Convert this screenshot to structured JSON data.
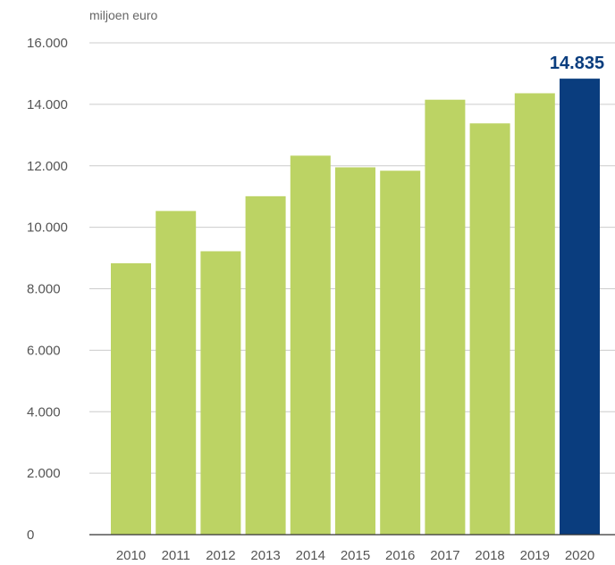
{
  "chart_data": {
    "type": "bar",
    "ylabel": "miljoen euro",
    "categories": [
      "2010",
      "2011",
      "2012",
      "2013",
      "2014",
      "2015",
      "2016",
      "2017",
      "2018",
      "2019",
      "2020"
    ],
    "values": [
      8830,
      10530,
      9220,
      11010,
      12330,
      11950,
      11840,
      14150,
      13380,
      14360,
      14835
    ],
    "ylim": [
      0,
      16000
    ],
    "yticks": [
      0,
      2000,
      4000,
      6000,
      8000,
      10000,
      12000,
      14000,
      16000
    ],
    "ytick_labels": [
      "0",
      "2.000",
      "4.000",
      "6.000",
      "8.000",
      "10.000",
      "12.000",
      "14.000",
      "16.000"
    ],
    "grid": true,
    "annotation": {
      "category": "2020",
      "text": "14.835"
    },
    "colors": {
      "bar": "#bcd364",
      "highlight": "#0a3d7e",
      "annotation": "#0a3d7e"
    }
  }
}
